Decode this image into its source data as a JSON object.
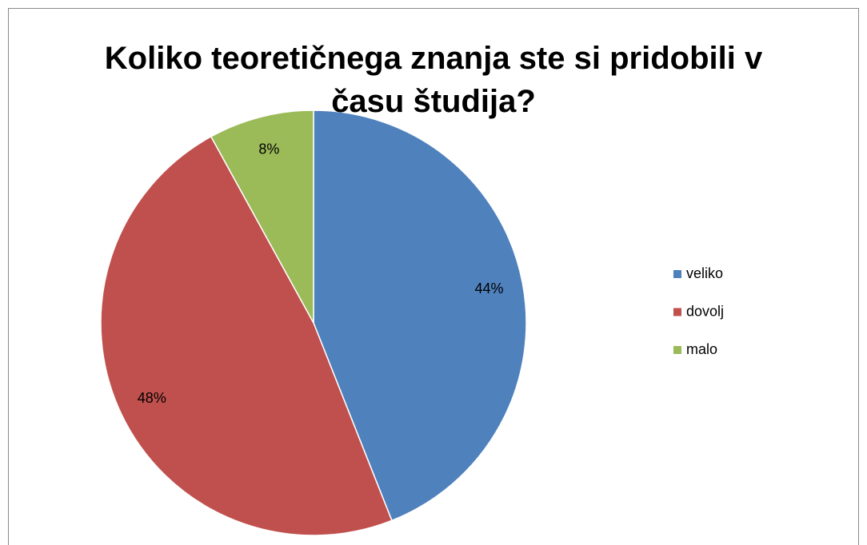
{
  "chart_data": {
    "type": "pie",
    "title": "Koliko teoretičnega znanja ste si pridobili v času študija?",
    "categories": [
      "veliko",
      "dovolj",
      "malo"
    ],
    "values": [
      44,
      48,
      8
    ],
    "value_labels": [
      "44%",
      "48%",
      "8%"
    ],
    "colors": [
      "#4f81bd",
      "#c0504d",
      "#9bbb59"
    ],
    "legend": "right"
  }
}
